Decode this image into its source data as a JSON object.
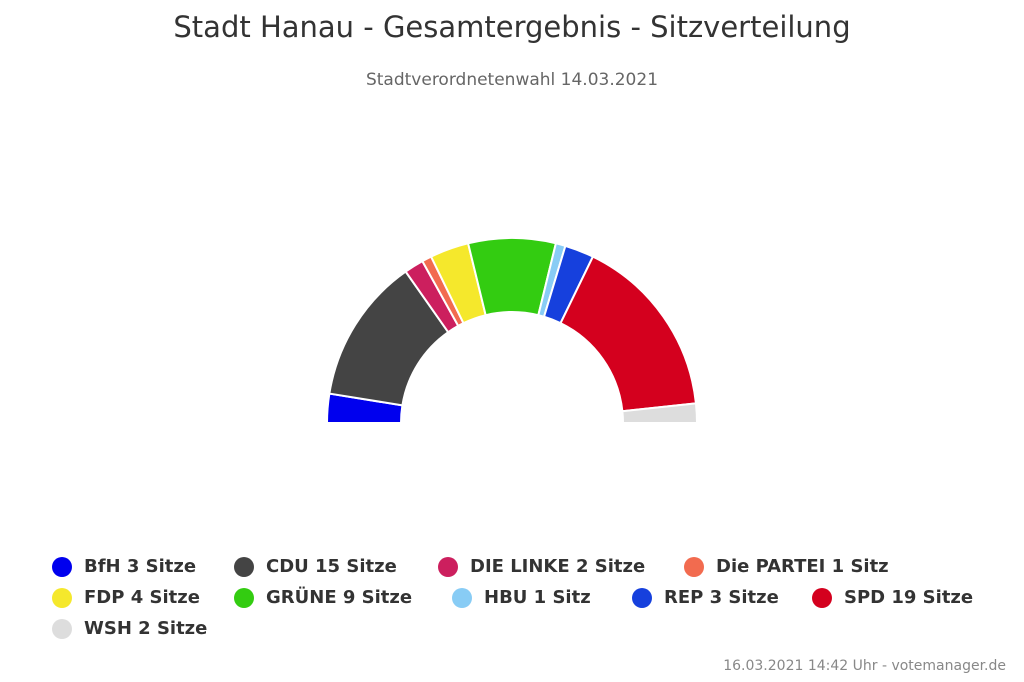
{
  "title": "Stadt Hanau - Gesamtergebnis - Sitzverteilung",
  "subtitle": "Stadtverordnetenwahl 14.03.2021",
  "footer": "16.03.2021 14:42 Uhr - votemanager.de",
  "chart_data": {
    "type": "pie",
    "variant": "semicircle-parliament",
    "title": "Stadt Hanau - Gesamtergebnis - Sitzverteilung",
    "subtitle": "Stadtverordnetenwahl 14.03.2021",
    "legend_position": "bottom",
    "series": [
      {
        "name": "BfH",
        "seats": 3,
        "label": "BfH 3 Sitze",
        "color": "#0000ee"
      },
      {
        "name": "CDU",
        "seats": 15,
        "label": "CDU 15 Sitze",
        "color": "#444444"
      },
      {
        "name": "DIE LINKE",
        "seats": 2,
        "label": "DIE LINKE 2 Sitze",
        "color": "#cc1f5e"
      },
      {
        "name": "Die PARTEI",
        "seats": 1,
        "label": "Die PARTEI 1 Sitz",
        "color": "#f26b4f"
      },
      {
        "name": "FDP",
        "seats": 4,
        "label": "FDP 4 Sitze",
        "color": "#f5e82c"
      },
      {
        "name": "GRÜNE",
        "seats": 9,
        "label": "GRÜNE 9 Sitze",
        "color": "#33cc11"
      },
      {
        "name": "HBU",
        "seats": 1,
        "label": "HBU 1 Sitz",
        "color": "#88ccf5"
      },
      {
        "name": "REP",
        "seats": 3,
        "label": "REP 3 Sitze",
        "color": "#1640dd"
      },
      {
        "name": "SPD",
        "seats": 19,
        "label": "SPD 19 Sitze",
        "color": "#d4001e"
      },
      {
        "name": "WSH",
        "seats": 2,
        "label": "WSH 2 Sitze",
        "color": "#dddddd"
      }
    ]
  }
}
